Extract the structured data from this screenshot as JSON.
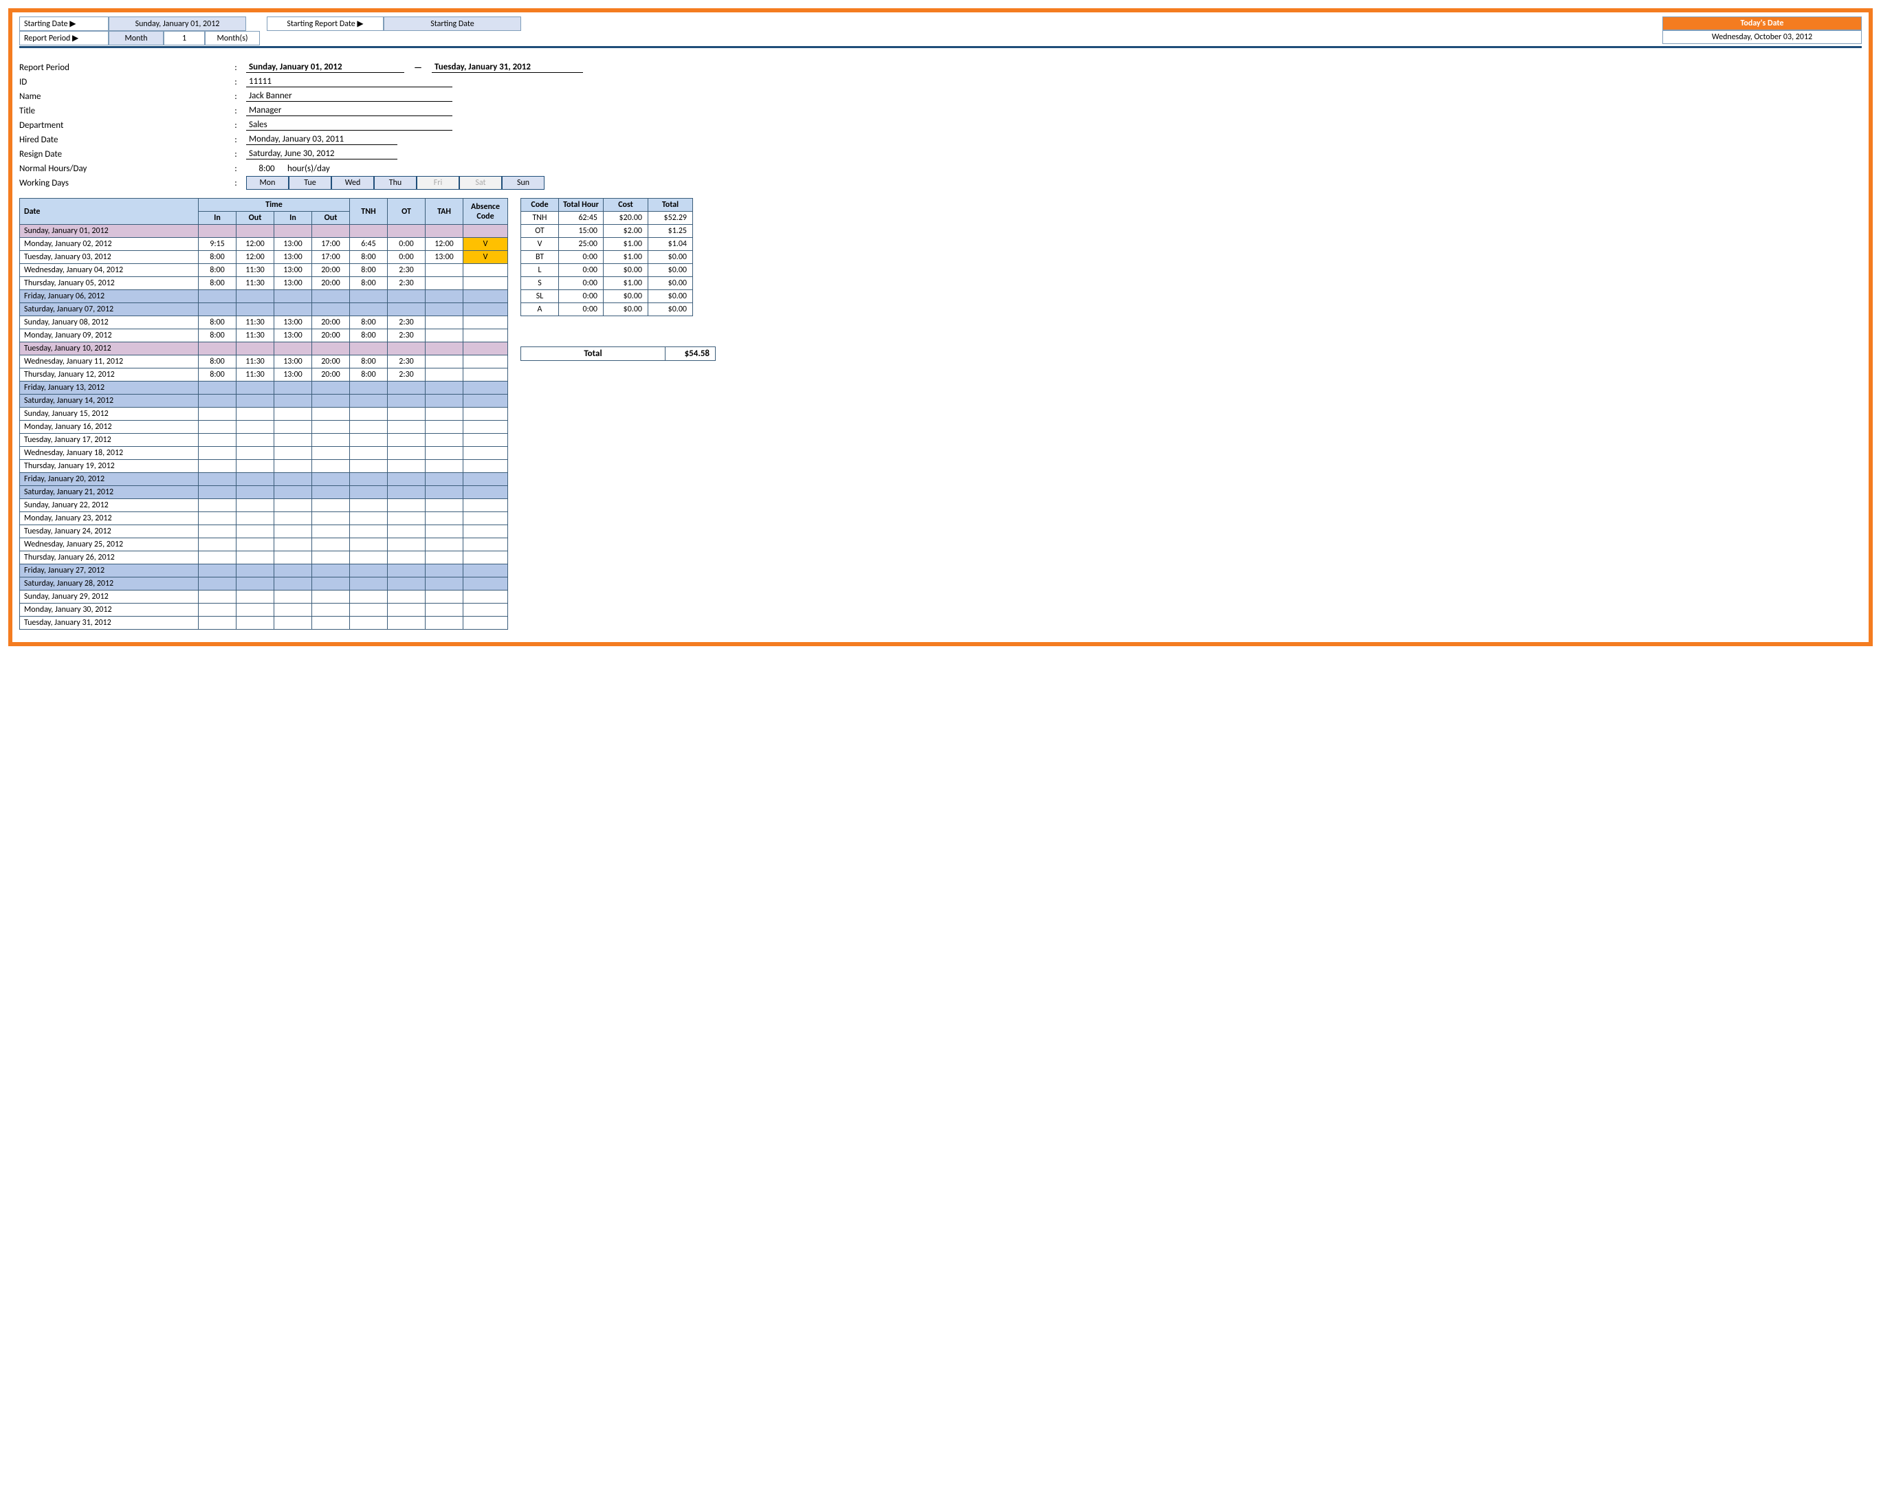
{
  "topbar": {
    "starting_date_label": "Starting Date ▶",
    "starting_date_value": "Sunday, January 01, 2012",
    "starting_report_label": "Starting Report Date ▶",
    "starting_report_value": "Starting Date",
    "report_period_label": "Report Period ▶",
    "report_period_unit": "Month",
    "report_period_qty": "1",
    "report_period_suffix": "Month(s)",
    "today_label": "Today's Date",
    "today_value": "Wednesday, October 03, 2012"
  },
  "info": {
    "report_period_label": "Report Period",
    "report_period_from": "Sunday, January 01, 2012",
    "report_period_to": "Tuesday, January 31, 2012",
    "id_label": "ID",
    "id_value": "11111",
    "name_label": "Name",
    "name_value": "Jack Banner",
    "title_label": "Title",
    "title_value": "Manager",
    "dept_label": "Department",
    "dept_value": "Sales",
    "hired_label": "Hired Date",
    "hired_value": "Monday, January 03, 2011",
    "resign_label": "Resign Date",
    "resign_value": "Saturday, June 30, 2012",
    "normal_label": "Normal Hours/Day",
    "normal_value": "8:00",
    "normal_suffix": "hour(s)/day",
    "wd_label": "Working Days",
    "wd": [
      "Mon",
      "Tue",
      "Wed",
      "Thu",
      "Fri",
      "Sat",
      "Sun"
    ],
    "wd_off": [
      4,
      5
    ]
  },
  "time_headers": {
    "date": "Date",
    "time": "Time",
    "in": "In",
    "out": "Out",
    "tnh": "TNH",
    "ot": "OT",
    "tah": "TAH",
    "abs": "Absence Code"
  },
  "rows": [
    {
      "date": "Sunday, January 01, 2012",
      "style": "pink"
    },
    {
      "date": "Monday, January 02, 2012",
      "in1": "9:15",
      "out1": "12:00",
      "in2": "13:00",
      "out2": "17:00",
      "tnh": "6:45",
      "ot": "0:00",
      "tah": "12:00",
      "abs": "V"
    },
    {
      "date": "Tuesday, January 03, 2012",
      "in1": "8:00",
      "out1": "12:00",
      "in2": "13:00",
      "out2": "17:00",
      "tnh": "8:00",
      "ot": "0:00",
      "tah": "13:00",
      "abs": "V"
    },
    {
      "date": "Wednesday, January 04, 2012",
      "in1": "8:00",
      "out1": "11:30",
      "in2": "13:00",
      "out2": "20:00",
      "tnh": "8:00",
      "ot": "2:30"
    },
    {
      "date": "Thursday, January 05, 2012",
      "in1": "8:00",
      "out1": "11:30",
      "in2": "13:00",
      "out2": "20:00",
      "tnh": "8:00",
      "ot": "2:30"
    },
    {
      "date": "Friday, January 06, 2012",
      "style": "weekend"
    },
    {
      "date": "Saturday, January 07, 2012",
      "style": "weekend"
    },
    {
      "date": "Sunday, January 08, 2012",
      "in1": "8:00",
      "out1": "11:30",
      "in2": "13:00",
      "out2": "20:00",
      "tnh": "8:00",
      "ot": "2:30"
    },
    {
      "date": "Monday, January 09, 2012",
      "in1": "8:00",
      "out1": "11:30",
      "in2": "13:00",
      "out2": "20:00",
      "tnh": "8:00",
      "ot": "2:30"
    },
    {
      "date": "Tuesday, January 10, 2012",
      "style": "pink"
    },
    {
      "date": "Wednesday, January 11, 2012",
      "in1": "8:00",
      "out1": "11:30",
      "in2": "13:00",
      "out2": "20:00",
      "tnh": "8:00",
      "ot": "2:30"
    },
    {
      "date": "Thursday, January 12, 2012",
      "in1": "8:00",
      "out1": "11:30",
      "in2": "13:00",
      "out2": "20:00",
      "tnh": "8:00",
      "ot": "2:30"
    },
    {
      "date": "Friday, January 13, 2012",
      "style": "weekend"
    },
    {
      "date": "Saturday, January 14, 2012",
      "style": "weekend"
    },
    {
      "date": "Sunday, January 15, 2012"
    },
    {
      "date": "Monday, January 16, 2012"
    },
    {
      "date": "Tuesday, January 17, 2012"
    },
    {
      "date": "Wednesday, January 18, 2012"
    },
    {
      "date": "Thursday, January 19, 2012"
    },
    {
      "date": "Friday, January 20, 2012",
      "style": "weekend"
    },
    {
      "date": "Saturday, January 21, 2012",
      "style": "weekend"
    },
    {
      "date": "Sunday, January 22, 2012"
    },
    {
      "date": "Monday, January 23, 2012"
    },
    {
      "date": "Tuesday, January 24, 2012"
    },
    {
      "date": "Wednesday, January 25, 2012"
    },
    {
      "date": "Thursday, January 26, 2012"
    },
    {
      "date": "Friday, January 27, 2012",
      "style": "weekend"
    },
    {
      "date": "Saturday, January 28, 2012",
      "style": "weekend"
    },
    {
      "date": "Sunday, January 29, 2012"
    },
    {
      "date": "Monday, January 30, 2012"
    },
    {
      "date": "Tuesday, January 31, 2012"
    }
  ],
  "summary_headers": {
    "code": "Code",
    "hour": "Total Hour",
    "cost": "Cost",
    "total": "Total"
  },
  "summary": [
    {
      "code": "TNH",
      "hour": "62:45",
      "cost": "$20.00",
      "total": "$52.29"
    },
    {
      "code": "OT",
      "hour": "15:00",
      "cost": "$2.00",
      "total": "$1.25"
    },
    {
      "code": "V",
      "hour": "25:00",
      "cost": "$1.00",
      "total": "$1.04"
    },
    {
      "code": "BT",
      "hour": "0:00",
      "cost": "$1.00",
      "total": "$0.00"
    },
    {
      "code": "L",
      "hour": "0:00",
      "cost": "$0.00",
      "total": "$0.00"
    },
    {
      "code": "S",
      "hour": "0:00",
      "cost": "$1.00",
      "total": "$0.00"
    },
    {
      "code": "SL",
      "hour": "0:00",
      "cost": "$0.00",
      "total": "$0.00"
    },
    {
      "code": "A",
      "hour": "0:00",
      "cost": "$0.00",
      "total": "$0.00"
    }
  ],
  "grand_total_label": "Total",
  "grand_total_value": "$54.58"
}
